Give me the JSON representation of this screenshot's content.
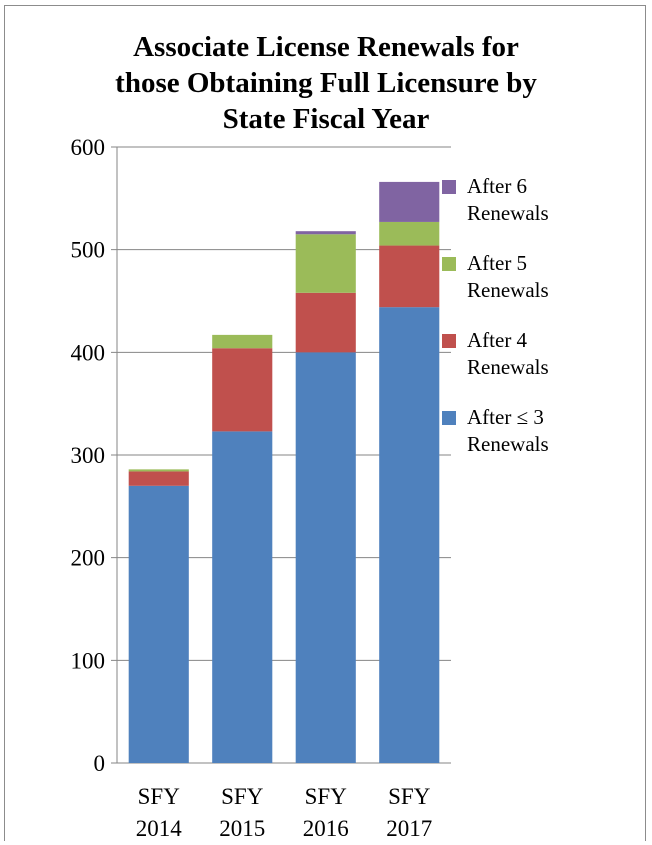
{
  "chart_data": {
    "type": "bar",
    "stacked": true,
    "title_lines": [
      "Associate License Renewals for",
      "those Obtaining Full Licensure by",
      "State Fiscal Year"
    ],
    "categories": [
      {
        "line1": "SFY",
        "line2": "2014"
      },
      {
        "line1": "SFY",
        "line2": "2015"
      },
      {
        "line1": "SFY",
        "line2": "2016"
      },
      {
        "line1": "SFY",
        "line2": "2017"
      }
    ],
    "series": [
      {
        "name_lines": [
          "After ≤ 3",
          "Renewals"
        ],
        "color": "#4f81bd",
        "values": [
          270,
          323,
          400,
          444
        ]
      },
      {
        "name_lines": [
          "After 4",
          "Renewals"
        ],
        "color": "#c0504d",
        "values": [
          14,
          81,
          58,
          60
        ]
      },
      {
        "name_lines": [
          "After 5",
          "Renewals"
        ],
        "color": "#9bbb59",
        "values": [
          2,
          13,
          57,
          23
        ]
      },
      {
        "name_lines": [
          "After 6",
          "Renewals"
        ],
        "color": "#8064a2",
        "values": [
          0,
          0,
          3,
          39
        ]
      }
    ],
    "ylim": [
      0,
      600
    ],
    "yticks": [
      "0",
      "100",
      "200",
      "300",
      "400",
      "500",
      "600"
    ],
    "grid": true,
    "legend_position": "right",
    "legend_order": [
      3,
      2,
      1,
      0
    ],
    "gridline_color": "#868686"
  }
}
